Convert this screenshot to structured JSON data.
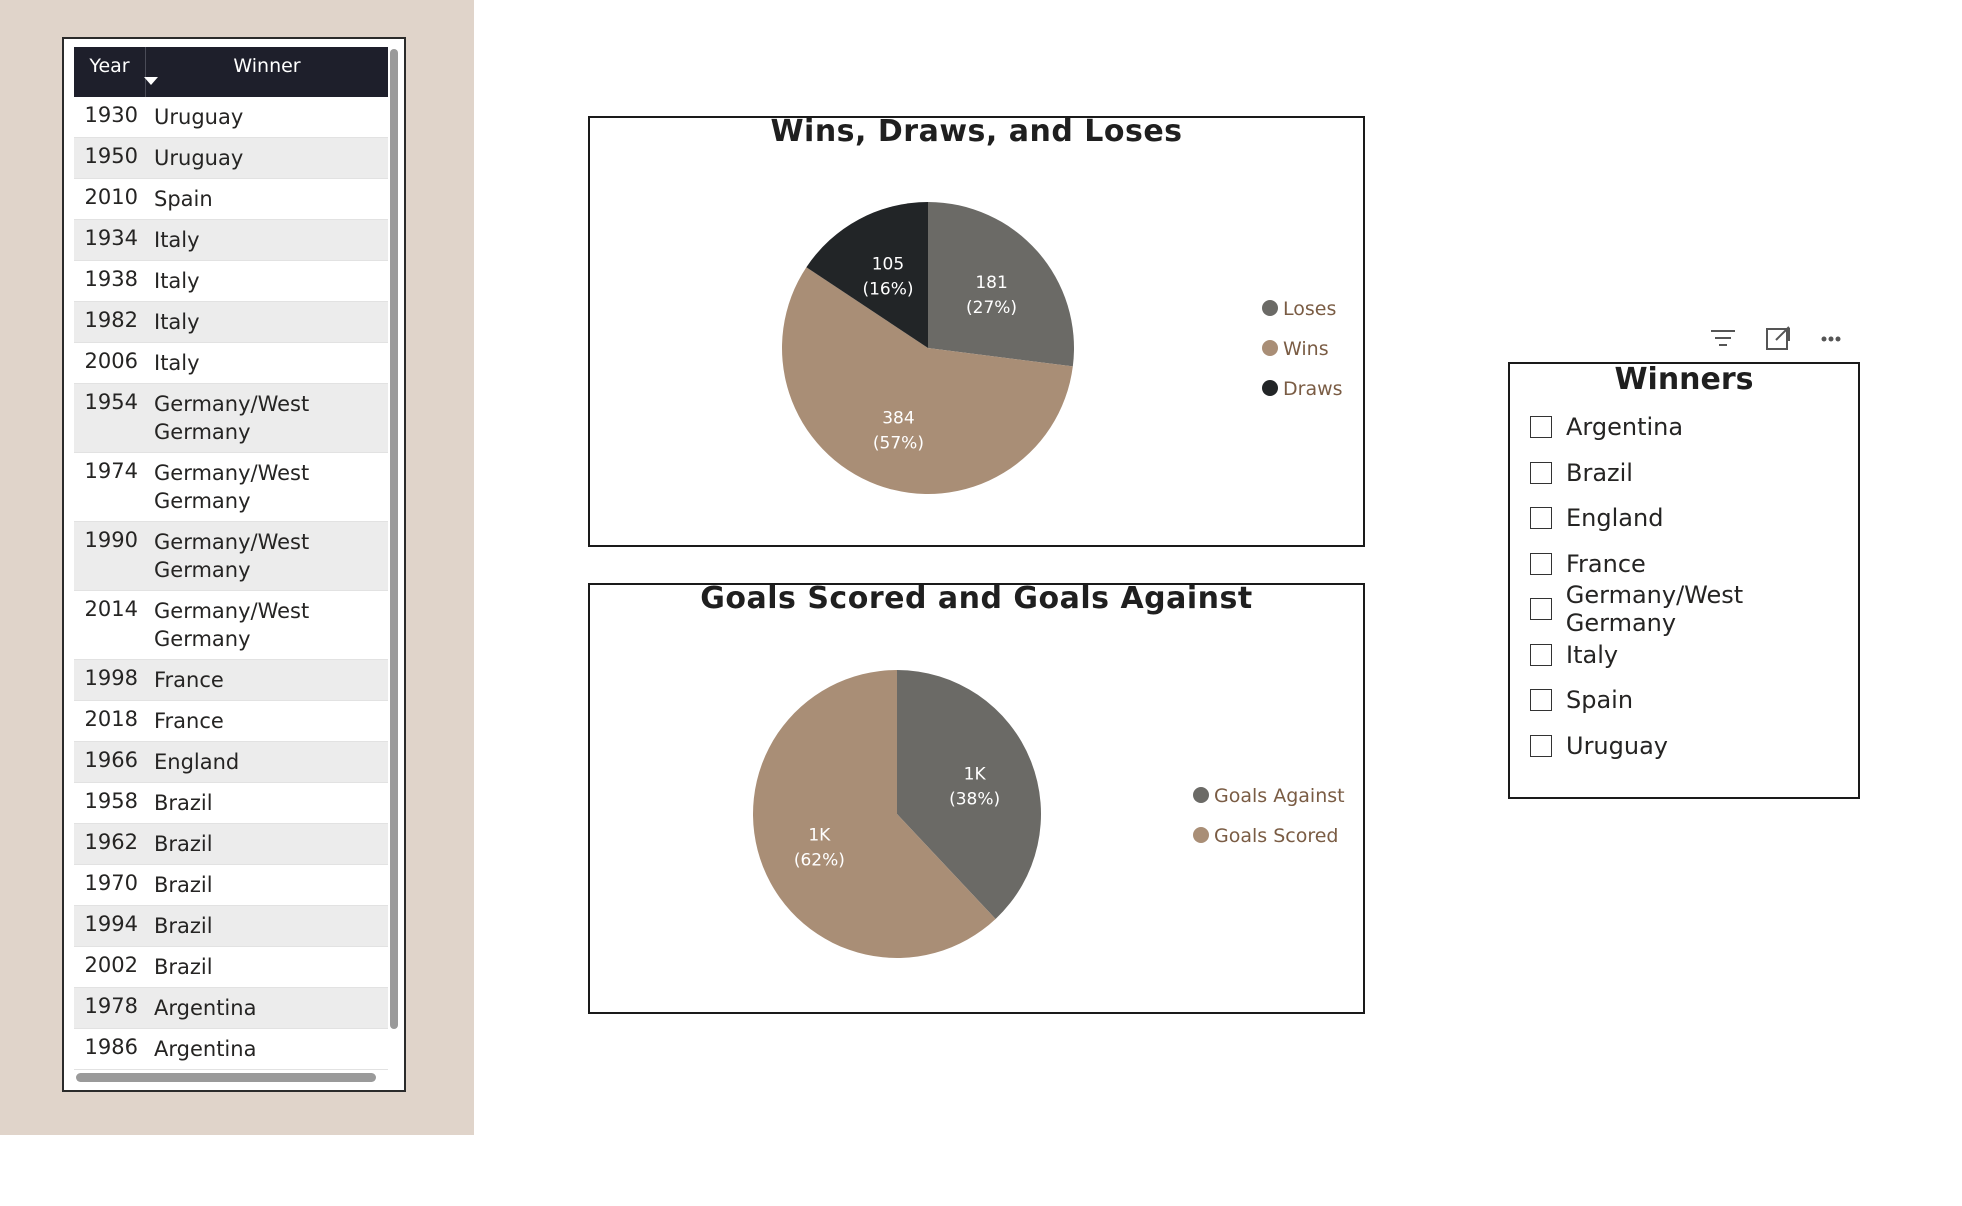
{
  "table": {
    "headers": {
      "year": "Year",
      "winner": "Winner"
    },
    "rows": [
      {
        "year": "1930",
        "winner": "Uruguay"
      },
      {
        "year": "1950",
        "winner": "Uruguay"
      },
      {
        "year": "2010",
        "winner": "Spain"
      },
      {
        "year": "1934",
        "winner": "Italy"
      },
      {
        "year": "1938",
        "winner": "Italy"
      },
      {
        "year": "1982",
        "winner": "Italy"
      },
      {
        "year": "2006",
        "winner": "Italy"
      },
      {
        "year": "1954",
        "winner": "Germany/West Germany"
      },
      {
        "year": "1974",
        "winner": "Germany/West Germany"
      },
      {
        "year": "1990",
        "winner": "Germany/West Germany"
      },
      {
        "year": "2014",
        "winner": "Germany/West Germany"
      },
      {
        "year": "1998",
        "winner": "France"
      },
      {
        "year": "2018",
        "winner": "France"
      },
      {
        "year": "1966",
        "winner": "England"
      },
      {
        "year": "1958",
        "winner": "Brazil"
      },
      {
        "year": "1962",
        "winner": "Brazil"
      },
      {
        "year": "1970",
        "winner": "Brazil"
      },
      {
        "year": "1994",
        "winner": "Brazil"
      },
      {
        "year": "2002",
        "winner": "Brazil"
      },
      {
        "year": "1978",
        "winner": "Argentina"
      },
      {
        "year": "1986",
        "winner": "Argentina"
      }
    ]
  },
  "chart_data": [
    {
      "type": "pie",
      "title": "Wins, Draws, and Loses",
      "legend_position": "right",
      "slices": [
        {
          "name": "Loses",
          "value": 181,
          "label": "181",
          "pct": "(27%)",
          "color": "#6b6a66"
        },
        {
          "name": "Wins",
          "value": 384,
          "label": "384",
          "pct": "(57%)",
          "color": "#a98e76"
        },
        {
          "name": "Draws",
          "value": 105,
          "label": "105",
          "pct": "(16%)",
          "color": "#222527"
        }
      ]
    },
    {
      "type": "pie",
      "title": "Goals Scored and Goals Against",
      "legend_position": "right",
      "slices": [
        {
          "name": "Goals Against",
          "value": 38,
          "label": "1K",
          "pct": "(38%)",
          "color": "#6b6a66"
        },
        {
          "name": "Goals Scored",
          "value": 62,
          "label": "1K",
          "pct": "(62%)",
          "color": "#a98e76"
        }
      ]
    }
  ],
  "slicer": {
    "title": "Winners",
    "items": [
      "Argentina",
      "Brazil",
      "England",
      "France",
      "Germany/West Germany",
      "Italy",
      "Spain",
      "Uruguay"
    ],
    "icons": [
      "filter-icon",
      "focus-mode-icon",
      "more-options-icon"
    ]
  },
  "colors": {
    "panel_bg": "#e0d4ca",
    "header_bg": "#1e1f2b",
    "legend_text": "#7a5c44"
  }
}
